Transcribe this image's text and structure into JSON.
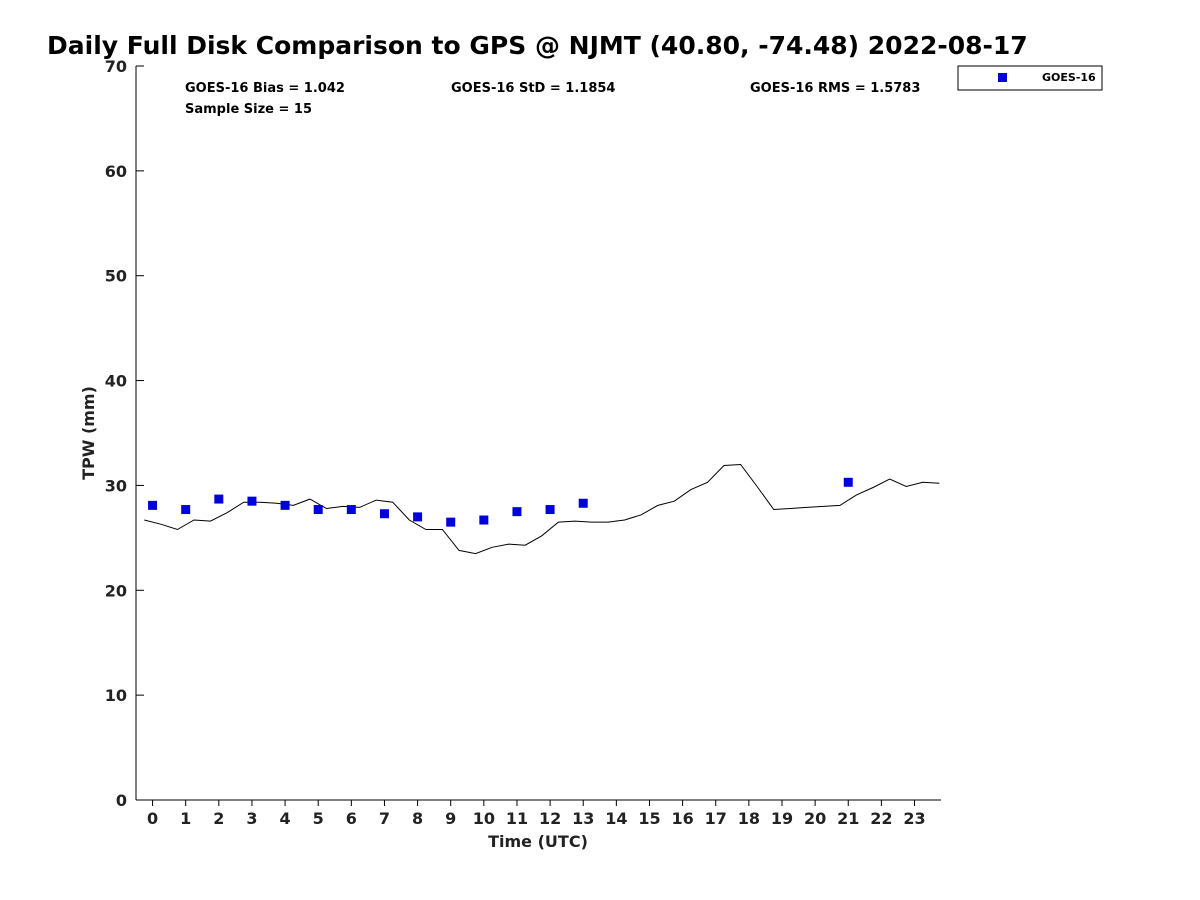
{
  "chart_data": {
    "type": "scatter",
    "title": "Daily Full Disk Comparison to GPS @ NJMT (40.80, -74.48) 2022-08-17",
    "xlabel": "Time (UTC)",
    "ylabel": "TPW (mm)",
    "xlim": [
      -0.5,
      23.8
    ],
    "ylim": [
      0,
      70
    ],
    "x_ticks": [
      "0",
      "1",
      "2",
      "3",
      "4",
      "5",
      "6",
      "7",
      "8",
      "9",
      "10",
      "11",
      "12",
      "13",
      "14",
      "15",
      "16",
      "17",
      "18",
      "19",
      "20",
      "21",
      "22",
      "23"
    ],
    "y_ticks": [
      "0",
      "10",
      "20",
      "30",
      "40",
      "50",
      "60",
      "70"
    ],
    "grid": false,
    "legend_position": "top-right, outside plot",
    "stats": {
      "bias": "GOES-16 Bias = 1.042",
      "std": "GOES-16 StD = 1.1854",
      "rms": "GOES-16 RMS = 1.5783",
      "sample": "Sample Size = 15"
    },
    "series": [
      {
        "name": "GOES-16",
        "kind": "scatter",
        "color": "#0000dd",
        "marker": "square",
        "x": [
          0,
          1,
          2,
          3,
          4,
          5,
          6,
          7,
          8,
          9,
          10,
          11,
          12,
          13,
          21
        ],
        "y": [
          28.1,
          27.7,
          28.7,
          28.5,
          28.1,
          27.7,
          27.7,
          27.3,
          27.0,
          26.5,
          26.7,
          27.5,
          27.7,
          28.3,
          30.3
        ]
      },
      {
        "kind": "line",
        "color": "#000000",
        "x": [
          -0.25,
          0.25,
          0.75,
          1.25,
          1.75,
          2.25,
          2.75,
          3.25,
          3.75,
          4.25,
          4.75,
          5.25,
          5.75,
          6.25,
          6.75,
          7.25,
          7.75,
          8.25,
          8.75,
          9.25,
          9.75,
          10.25,
          10.75,
          11.25,
          11.75,
          12.25,
          12.75,
          13.25,
          13.75,
          14.25,
          14.75,
          15.25,
          15.75,
          16.25,
          16.75,
          17.25,
          17.75,
          18.25,
          18.75,
          19.25,
          19.75,
          20.25,
          20.75,
          21.25,
          21.75,
          22.25,
          22.75,
          23.25,
          23.75
        ],
        "y": [
          26.7,
          26.3,
          25.8,
          26.7,
          26.6,
          27.4,
          28.4,
          28.4,
          28.3,
          28.1,
          28.7,
          27.8,
          28.0,
          27.9,
          28.6,
          28.4,
          26.7,
          25.8,
          25.8,
          23.8,
          23.5,
          24.1,
          24.4,
          24.3,
          25.2,
          26.5,
          26.6,
          26.5,
          26.5,
          26.7,
          27.2,
          28.1,
          28.5,
          29.6,
          30.3,
          31.9,
          32.0,
          29.9,
          27.7,
          27.8,
          27.9,
          28.0,
          28.1,
          29.1,
          29.8,
          30.6,
          29.9,
          30.3,
          30.2
        ]
      }
    ]
  }
}
